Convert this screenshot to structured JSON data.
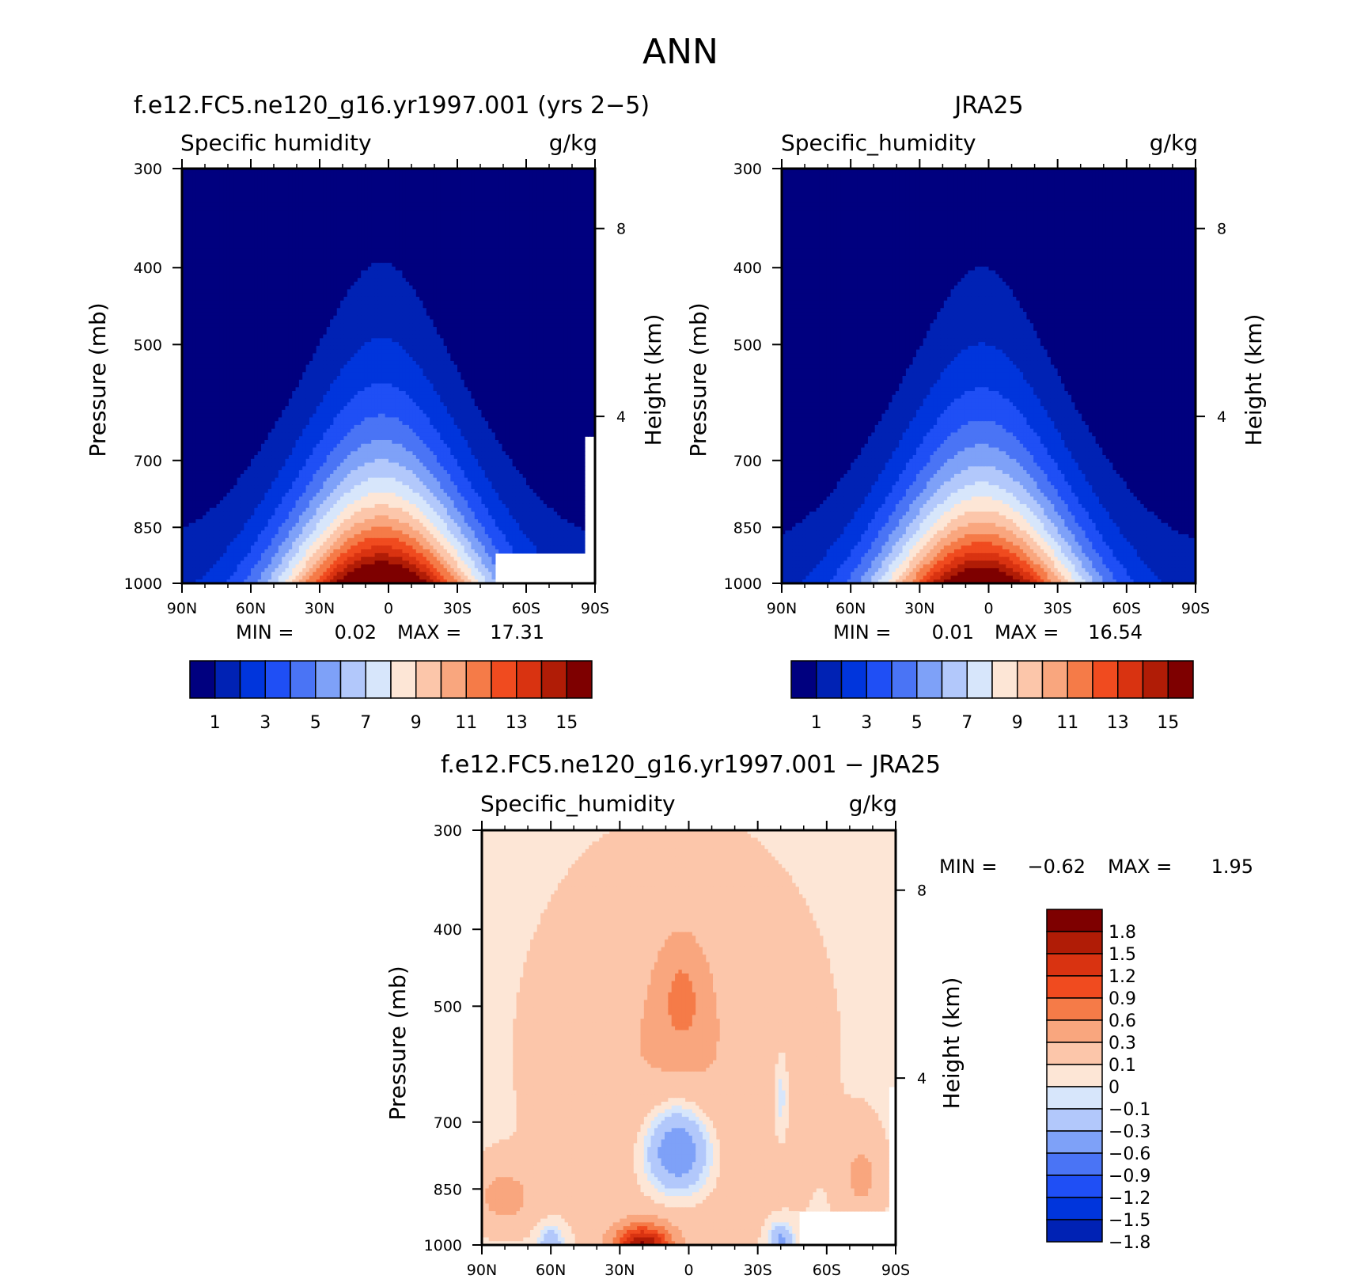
{
  "title": "ANN",
  "colors": {
    "seq": [
      "#00007f",
      "#0022b4",
      "#0035dc",
      "#1f4ff5",
      "#4a74f5",
      "#7ea1f8",
      "#b2c8fb",
      "#d7e6fb",
      "#fde6d6",
      "#fcc6aa",
      "#f9a67e",
      "#f57b48",
      "#f04b1f",
      "#d93311",
      "#b01c06",
      "#7e0000"
    ],
    "diff": [
      "#00007f",
      "#0022b4",
      "#0035dc",
      "#1f4ff5",
      "#4a74f5",
      "#7ea1f8",
      "#b2c8fb",
      "#d7e6fb",
      "#fde6d6",
      "#fcc6aa",
      "#f9a67e",
      "#f57b48",
      "#f04b1f",
      "#d93311",
      "#b01c06",
      "#7e0000"
    ]
  },
  "chart_data": [
    {
      "type": "contour",
      "case_title": "f.e12.FC5.ne120_g16.yr1997.001 (yrs 2-5)",
      "variable": "Specific humidity",
      "units": "g/kg",
      "ylabel": "Pressure (mb)",
      "ylabel_right": "Height (km)",
      "x_ticks": [
        "90N",
        "60N",
        "30N",
        "0",
        "30S",
        "60S",
        "90S"
      ],
      "y_ticks": [
        300,
        400,
        500,
        700,
        850,
        1000
      ],
      "y2_ticks": [
        8,
        4
      ],
      "ylim": [
        1000,
        300
      ],
      "min_label": "MIN =",
      "min": "0.02",
      "max_label": "MAX =",
      "max": "17.31",
      "peak": {
        "lat": 3,
        "pressure": 1000
      },
      "colorbar_labels": [
        "1",
        "3",
        "5",
        "7",
        "9",
        "11",
        "13",
        "15"
      ],
      "levels": [
        1,
        2,
        3,
        4,
        5,
        6,
        7,
        8,
        9,
        10,
        11,
        12,
        13,
        14,
        15
      ]
    },
    {
      "type": "contour",
      "case_title": "JRA25",
      "variable": "Specific_humidity",
      "units": "g/kg",
      "ylabel": "Pressure (mb)",
      "ylabel_right": "Height (km)",
      "x_ticks": [
        "90N",
        "60N",
        "30N",
        "0",
        "30S",
        "60S",
        "90S"
      ],
      "y_ticks": [
        300,
        400,
        500,
        700,
        850,
        1000
      ],
      "y2_ticks": [
        8,
        4
      ],
      "ylim": [
        1000,
        300
      ],
      "min_label": "MIN =",
      "min": "0.01",
      "max_label": "MAX =",
      "max": "16.54",
      "peak": {
        "lat": 3,
        "pressure": 1000
      },
      "colorbar_labels": [
        "1",
        "3",
        "5",
        "7",
        "9",
        "11",
        "13",
        "15"
      ],
      "levels": [
        1,
        2,
        3,
        4,
        5,
        6,
        7,
        8,
        9,
        10,
        11,
        12,
        13,
        14,
        15
      ]
    },
    {
      "type": "contour",
      "case_title": "f.e12.FC5.ne120_g16.yr1997.001 - JRA25",
      "variable": "Specific_humidity",
      "units": "g/kg",
      "ylabel": "Pressure (mb)",
      "ylabel_right": "Height (km)",
      "x_ticks": [
        "90N",
        "60N",
        "30N",
        "0",
        "30S",
        "60S",
        "90S"
      ],
      "y_ticks": [
        300,
        400,
        500,
        700,
        850,
        1000
      ],
      "y2_ticks": [
        8,
        4
      ],
      "ylim": [
        1000,
        300
      ],
      "min_label": "MIN =",
      "min": "-0.62",
      "max_label": "MAX =",
      "max": "1.95",
      "colorbar_labels": [
        "1.8",
        "1.5",
        "1.2",
        "0.9",
        "0.6",
        "0.3",
        "0.1",
        "0",
        "-0.1",
        "-0.3",
        "-0.6",
        "-0.9",
        "-1.2",
        "-1.5",
        "-1.8"
      ]
    }
  ]
}
